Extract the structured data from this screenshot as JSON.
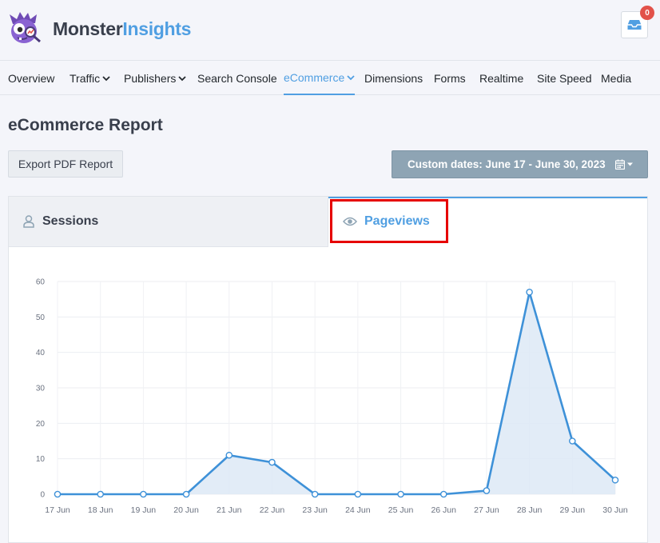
{
  "header": {
    "logo": {
      "word1": "Monster",
      "word2": "Insights",
      "icon": "monster-mascot-icon"
    },
    "notifications": {
      "count": "0",
      "icon": "inbox-icon"
    }
  },
  "nav": {
    "items": [
      {
        "label": "Overview",
        "dropdown": false,
        "active": false
      },
      {
        "label": "Traffic",
        "dropdown": true,
        "active": false
      },
      {
        "label": "Publishers",
        "dropdown": true,
        "active": false
      },
      {
        "label": "Search Console",
        "dropdown": false,
        "active": false
      },
      {
        "label": "eCommerce",
        "dropdown": true,
        "active": true
      },
      {
        "label": "Dimensions",
        "dropdown": false,
        "active": false
      },
      {
        "label": "Forms",
        "dropdown": false,
        "active": false
      },
      {
        "label": "Realtime",
        "dropdown": false,
        "active": false
      },
      {
        "label": "Site Speed",
        "dropdown": false,
        "active": false
      },
      {
        "label": "Media",
        "dropdown": false,
        "active": false
      }
    ]
  },
  "page": {
    "title": "eCommerce Report",
    "export_label": "Export PDF Report",
    "date_label": "Custom dates: June 17 - June 30, 2023"
  },
  "tabs": {
    "sessions": "Sessions",
    "pageviews": "Pageviews"
  },
  "colors": {
    "accent": "#509fe2",
    "line": "#3e91d8",
    "fill": "#dde9f6",
    "highlight": "#e60000"
  },
  "chart_data": {
    "type": "area",
    "categories": [
      "17 Jun",
      "18 Jun",
      "19 Jun",
      "20 Jun",
      "21 Jun",
      "22 Jun",
      "23 Jun",
      "24 Jun",
      "25 Jun",
      "26 Jun",
      "27 Jun",
      "28 Jun",
      "29 Jun",
      "30 Jun"
    ],
    "series": [
      {
        "values": [
          0,
          0,
          0,
          0,
          11,
          9,
          0,
          0,
          0,
          0,
          1,
          57,
          15,
          4
        ]
      }
    ],
    "yticks": [
      0,
      10,
      20,
      30,
      40,
      50,
      60
    ],
    "ylim": [
      0,
      60
    ],
    "grid": true,
    "legend": "none"
  }
}
